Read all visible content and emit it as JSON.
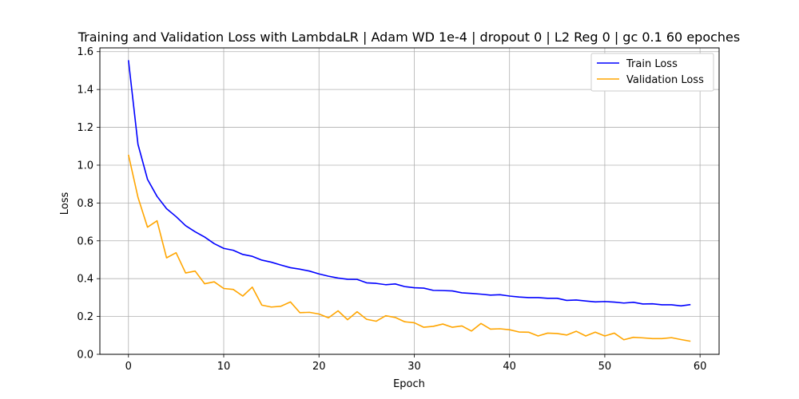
{
  "chart_data": {
    "type": "line",
    "title": "Training and Validation Loss with LambdaLR | Adam WD 1e-4 | dropout 0 | L2 Reg 0 | gc 0.1 60 epoches",
    "xlabel": "Epoch",
    "ylabel": "Loss",
    "xlim": [
      -3,
      62
    ],
    "ylim": [
      0.0,
      1.62
    ],
    "xticks": [
      0,
      10,
      20,
      30,
      40,
      50,
      60
    ],
    "yticks": [
      0.0,
      0.2,
      0.4,
      0.6,
      0.8,
      1.0,
      1.2,
      1.4,
      1.6
    ],
    "grid": true,
    "legend": "top-right",
    "x": [
      0,
      1,
      2,
      3,
      4,
      5,
      6,
      7,
      8,
      9,
      10,
      11,
      12,
      13,
      14,
      15,
      16,
      17,
      18,
      19,
      20,
      21,
      22,
      23,
      24,
      25,
      26,
      27,
      28,
      29,
      30,
      31,
      32,
      33,
      34,
      35,
      36,
      37,
      38,
      39,
      40,
      41,
      42,
      43,
      44,
      45,
      46,
      47,
      48,
      49,
      50,
      51,
      52,
      53,
      54,
      55,
      56,
      57,
      58,
      59
    ],
    "series": [
      {
        "name": "Train Loss",
        "color": "#0000ff",
        "values": [
          1.555,
          1.11,
          0.925,
          0.835,
          0.77,
          0.728,
          0.68,
          0.648,
          0.62,
          0.585,
          0.56,
          0.55,
          0.528,
          0.518,
          0.498,
          0.487,
          0.472,
          0.458,
          0.45,
          0.44,
          0.425,
          0.413,
          0.403,
          0.397,
          0.396,
          0.378,
          0.375,
          0.368,
          0.372,
          0.358,
          0.352,
          0.35,
          0.338,
          0.337,
          0.335,
          0.325,
          0.322,
          0.318,
          0.313,
          0.315,
          0.308,
          0.303,
          0.3,
          0.3,
          0.296,
          0.296,
          0.285,
          0.287,
          0.282,
          0.277,
          0.279,
          0.276,
          0.271,
          0.275,
          0.266,
          0.267,
          0.262,
          0.262,
          0.256,
          0.263
        ]
      },
      {
        "name": "Validation Loss",
        "color": "#ffa500",
        "values": [
          1.055,
          0.83,
          0.672,
          0.706,
          0.51,
          0.537,
          0.43,
          0.44,
          0.373,
          0.383,
          0.348,
          0.343,
          0.308,
          0.355,
          0.26,
          0.25,
          0.254,
          0.277,
          0.22,
          0.222,
          0.213,
          0.193,
          0.23,
          0.183,
          0.225,
          0.185,
          0.175,
          0.204,
          0.195,
          0.172,
          0.167,
          0.143,
          0.148,
          0.16,
          0.143,
          0.15,
          0.123,
          0.163,
          0.133,
          0.135,
          0.13,
          0.118,
          0.117,
          0.097,
          0.112,
          0.11,
          0.102,
          0.122,
          0.097,
          0.117,
          0.097,
          0.112,
          0.077,
          0.09,
          0.087,
          0.083,
          0.083,
          0.088,
          0.078,
          0.069
        ]
      }
    ]
  }
}
